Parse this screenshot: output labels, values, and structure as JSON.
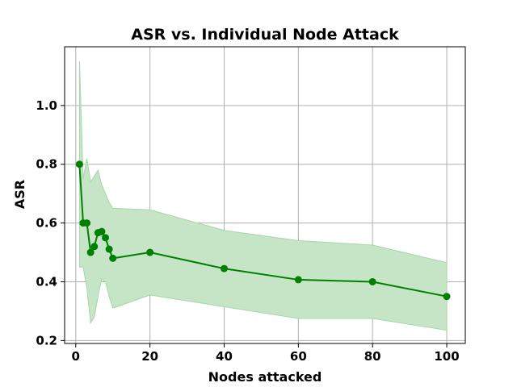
{
  "chart_data": {
    "type": "line",
    "title": "ASR vs. Individual Node Attack",
    "xlabel": "Nodes attacked",
    "ylabel": "ASR",
    "xlim": [
      -3,
      105
    ],
    "ylim": [
      0.19,
      1.2
    ],
    "xticks": [
      0,
      20,
      40,
      60,
      80,
      100
    ],
    "yticks": [
      0.2,
      0.4,
      0.6,
      0.8,
      1.0
    ],
    "xtick_labels": [
      "0",
      "20",
      "40",
      "60",
      "80",
      "100"
    ],
    "ytick_labels": [
      "0.2",
      "0.4",
      "0.6",
      "0.8",
      "1.0"
    ],
    "grid": true,
    "line_color": "#008000",
    "band_color": "#c6e4c6",
    "series": [
      {
        "x": [
          1,
          2,
          3,
          4,
          5,
          6,
          7,
          8,
          9,
          10,
          20,
          40,
          60,
          80,
          100
        ],
        "y": [
          0.8,
          0.6,
          0.6,
          0.5,
          0.52,
          0.567,
          0.571,
          0.55,
          0.511,
          0.48,
          0.5,
          0.445,
          0.407,
          0.4,
          0.35
        ],
        "upper": [
          1.15,
          0.75,
          0.82,
          0.74,
          0.76,
          0.78,
          0.73,
          0.7,
          0.67,
          0.65,
          0.645,
          0.575,
          0.54,
          0.525,
          0.465
        ],
        "lower": [
          0.45,
          0.45,
          0.38,
          0.26,
          0.28,
          0.35,
          0.41,
          0.4,
          0.35,
          0.31,
          0.355,
          0.315,
          0.275,
          0.275,
          0.235
        ]
      }
    ]
  }
}
